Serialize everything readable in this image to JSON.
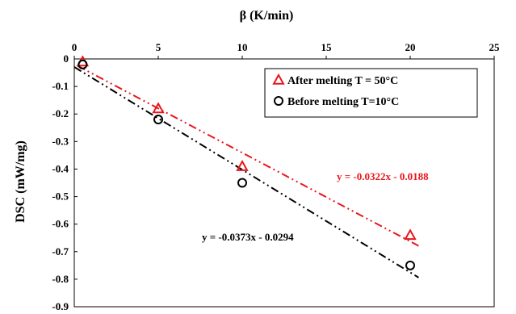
{
  "chart_data": {
    "type": "scatter",
    "xlabel": "β (K/min)",
    "ylabel": "DSC (mW/mg)",
    "xlim": [
      0,
      25
    ],
    "ylim": [
      -0.9,
      0
    ],
    "x_ticks": [
      "0",
      "5",
      "10",
      "15",
      "20",
      "25"
    ],
    "y_ticks": [
      "0",
      "-0.1",
      "-0.2",
      "-0.3",
      "-0.4",
      "-0.5",
      "-0.6",
      "-0.7",
      "-0.8",
      "-0.9"
    ],
    "x_axis_position": "top",
    "grid": false,
    "legend_position": "top-right",
    "series": [
      {
        "name": "After melting T = 50°C",
        "marker": "triangle",
        "color": "#e8161b",
        "x": [
          0.5,
          5,
          10,
          20
        ],
        "y": [
          -0.01,
          -0.18,
          -0.39,
          -0.64
        ],
        "trendline": {
          "slope": -0.0322,
          "intercept": -0.0188,
          "label": "y = -0.0322x - 0.0188",
          "label_color": "#e8161b"
        }
      },
      {
        "name": "Before melting T=10°C",
        "marker": "circle",
        "color": "#000000",
        "x": [
          0.5,
          5,
          10,
          20
        ],
        "y": [
          -0.02,
          -0.22,
          -0.45,
          -0.75
        ],
        "trendline": {
          "slope": -0.0373,
          "intercept": -0.0294,
          "label": "y = -0.0373x - 0.0294",
          "label_color": "#000000"
        }
      }
    ]
  }
}
